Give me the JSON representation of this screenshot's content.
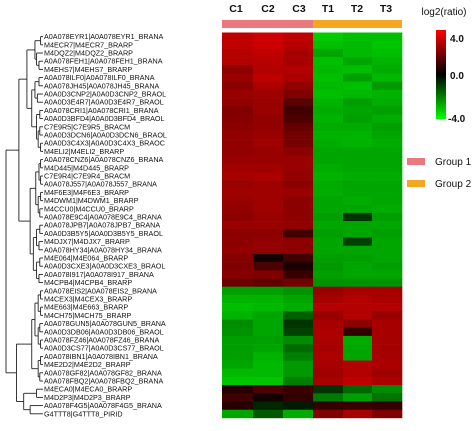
{
  "chart_data": {
    "type": "heatmap",
    "columns": [
      "C1",
      "C2",
      "C3",
      "T1",
      "T2",
      "T3"
    ],
    "column_groups": [
      "Group 1",
      "Group 1",
      "Group 1",
      "Group 2",
      "Group 2",
      "Group 2"
    ],
    "rows": [
      "A0A078EYR1|A0A078EYR1_BRANA",
      "M4ECR7|M4ECR7_BRARP",
      "M4DQZ2|M4DQZ2_BRARP",
      "A0A078FEH1|A0A078FEH1_BRANA",
      "M4EHS7|M4EHS7_BRARP",
      "A0A078ILF0|A0A078ILF0_BRANA",
      "A0A078JH45|A0A078JH45_BRANA",
      "A0A0D3CNP2|A0A0D3CNP2_BRAOL",
      "A0A0D3E4R7|A0A0D3E4R7_BRAOL",
      "A0A078CRI1|A0A078CRI1_BRANA",
      "A0A0D3BFD4|A0A0D3BFD4_BRAOL",
      "C7E9R5|C7E9R5_BRACM",
      "A0A0D3DCN6|A0A0D3DCN6_BRAOL",
      "A0A0D3C4X3|A0A0D3C4X3_BRAOC",
      "M4ELI2|M4ELI2_BRARP",
      "A0A078CNZ6|A0A078CNZ6_BRANA",
      "M4D445|M4D445_BRARP",
      "C7E9R4|C7E9R4_BRACM",
      "A0A078J557|A0A078J557_BRANA",
      "M4F6E3|M4F6E3_BRARP",
      "M4DWM1|M4DWM1_BRARP",
      "M4CCU0|M4CCU0_BRARP",
      "A0A078E9C4|A0A078E9C4_BRANA",
      "A0A078JPB7|A0A078JPB7_BRANA",
      "A0A0D3B5Y5|A0A0D3B5Y5_BRAOL",
      "M4DJX7|M4DJX7_BRARP",
      "A0A078HY34|A0A078HY34_BRANA",
      "M4E064|M4E064_BRARP",
      "A0A0D3CXE3|A0A0D3CXE3_BRAOL",
      "A0A078I917|A0A078I917_BRANA",
      "M4CPB4|M4CPB4_BRARP",
      "A0A078EIS2|A0A078EIS2_BRANA",
      "M4CEX3|M4CEX3_BRARP",
      "M4E663|M4E663_BRARP",
      "M4CH75|M4CH75_BRARP",
      "A0A078GUN5|A0A078GUN5_BRANA",
      "A0A0D3DB06|A0A0D3DB06_BRAOL",
      "A0A078FZ46|A0A078FZ46_BRANA",
      "A0A0D3CS77|A0A0D3CS77_BRAOL",
      "A0A078IBN1|A0A078IBN1_BRANA",
      "M4E2D2|M4E2D2_BRARP",
      "A0A078GF82|A0A078GF82_BRANA",
      "A0A078FBQ2|A0A078FBQ2_BRANA",
      "M4ECA0|M4ECA0_BRARP",
      "M4D2P3|M4D2P3_BRARP",
      "A0A078F4G5|A0A078F4G5_BRANA",
      "G4TTT8|G4TTT8_PIRID"
    ],
    "values": [
      [
        3.0,
        3.2,
        3.0,
        -3.2,
        -3.0,
        -3.0
      ],
      [
        3.0,
        3.2,
        2.9,
        -3.0,
        -2.9,
        -3.1
      ],
      [
        2.8,
        3.0,
        2.6,
        -2.6,
        -2.9,
        -3.0
      ],
      [
        2.8,
        2.9,
        2.6,
        -3.0,
        -2.6,
        -2.8
      ],
      [
        2.2,
        2.8,
        2.8,
        -2.9,
        -3.0,
        -2.7
      ],
      [
        2.4,
        3.0,
        2.7,
        -3.0,
        -2.5,
        -2.9
      ],
      [
        2.2,
        2.7,
        2.3,
        -2.9,
        -3.0,
        -2.4
      ],
      [
        2.4,
        2.5,
        2.0,
        -3.0,
        -2.9,
        -2.8
      ],
      [
        2.3,
        2.4,
        1.4,
        -2.8,
        -2.5,
        -2.7
      ],
      [
        2.0,
        2.4,
        1.0,
        -2.7,
        -2.6,
        -2.5
      ],
      [
        2.1,
        2.3,
        1.2,
        -2.8,
        -2.5,
        -2.7
      ],
      [
        2.2,
        2.3,
        1.6,
        -2.7,
        -2.7,
        -2.5
      ],
      [
        2.3,
        2.4,
        1.8,
        -2.8,
        -2.8,
        -2.6
      ],
      [
        2.3,
        2.5,
        1.9,
        -2.7,
        -2.8,
        -2.7
      ],
      [
        2.3,
        2.4,
        2.2,
        -2.6,
        -2.6,
        -2.6
      ],
      [
        2.4,
        2.4,
        2.4,
        -2.6,
        -2.6,
        -2.6
      ],
      [
        2.5,
        2.5,
        2.4,
        -2.7,
        -2.6,
        -2.6
      ],
      [
        2.6,
        2.7,
        2.3,
        -2.8,
        -2.7,
        -2.7
      ],
      [
        2.4,
        2.5,
        2.2,
        -2.7,
        -2.6,
        -2.6
      ],
      [
        2.5,
        2.5,
        2.4,
        -2.7,
        -2.6,
        -2.6
      ],
      [
        2.4,
        2.5,
        2.2,
        -2.6,
        -2.7,
        -2.6
      ],
      [
        2.3,
        2.5,
        2.2,
        -2.6,
        -2.6,
        -2.7
      ],
      [
        2.2,
        2.4,
        2.2,
        -2.5,
        -0.8,
        -2.5
      ],
      [
        2.4,
        2.4,
        2.3,
        -2.6,
        -2.6,
        -2.6
      ],
      [
        2.2,
        2.2,
        1.0,
        -2.5,
        -2.6,
        -2.5
      ],
      [
        2.2,
        2.3,
        2.2,
        -2.6,
        -1.0,
        -2.6
      ],
      [
        2.3,
        2.3,
        2.2,
        -2.6,
        -2.6,
        -2.6
      ],
      [
        2.1,
        0.3,
        1.0,
        -2.5,
        -2.5,
        -2.6
      ],
      [
        2.0,
        1.2,
        0.4,
        -2.4,
        -2.6,
        -2.5
      ],
      [
        2.1,
        2.0,
        0.9,
        -2.5,
        -2.6,
        -2.6
      ],
      [
        1.7,
        1.5,
        1.8,
        -2.3,
        -2.3,
        -2.3
      ],
      [
        -2.5,
        -2.5,
        -2.3,
        2.4,
        2.6,
        2.6
      ],
      [
        -2.8,
        -2.8,
        -2.6,
        2.6,
        2.8,
        2.7
      ],
      [
        -3.0,
        -2.9,
        -2.7,
        2.8,
        2.8,
        2.8
      ],
      [
        -2.8,
        -2.6,
        -1.5,
        2.4,
        2.8,
        2.4
      ],
      [
        -2.2,
        -2.6,
        -0.8,
        2.6,
        2.2,
        2.6
      ],
      [
        -2.3,
        -2.6,
        -1.0,
        2.7,
        0.8,
        2.6
      ],
      [
        -2.5,
        -2.5,
        -2.2,
        2.7,
        -2.7,
        2.6
      ],
      [
        -2.5,
        -2.6,
        -1.7,
        2.6,
        -2.6,
        2.6
      ],
      [
        -2.5,
        -2.8,
        -2.0,
        2.7,
        -2.6,
        2.6
      ],
      [
        -2.6,
        -2.9,
        -2.4,
        2.6,
        2.8,
        2.7
      ],
      [
        -2.9,
        -2.9,
        -2.4,
        2.5,
        2.8,
        2.5
      ],
      [
        -3.1,
        -3.1,
        -2.0,
        2.6,
        3.0,
        2.7
      ],
      [
        0.6,
        1.2,
        0.9,
        -0.8,
        -1.6,
        -2.2
      ],
      [
        1.0,
        0.3,
        0.8,
        -1.9,
        -2.5,
        -1.8
      ],
      [
        0.6,
        -0.6,
        -0.4,
        0.8,
        0.9,
        0.8
      ],
      [
        -2.6,
        -1.4,
        -2.7,
        2.0,
        2.6,
        2.0
      ]
    ],
    "dendrogram": {
      "merges": [
        [
          -1,
          -2,
          0.03
        ],
        [
          -4,
          -5,
          0.05
        ],
        [
          -3,
          2,
          0.08
        ],
        [
          1,
          3,
          0.1
        ],
        [
          -6,
          -7,
          0.05
        ],
        [
          -8,
          -9,
          0.07
        ],
        [
          5,
          6,
          0.1
        ],
        [
          -10,
          -11,
          0.04
        ],
        [
          -12,
          -13,
          0.04
        ],
        [
          -14,
          -15,
          0.03
        ],
        [
          9,
          10,
          0.06
        ],
        [
          8,
          11,
          0.08
        ],
        [
          7,
          12,
          0.14
        ],
        [
          4,
          13,
          0.2
        ],
        [
          -16,
          -17,
          0.03
        ],
        [
          -18,
          -19,
          0.03
        ],
        [
          15,
          16,
          0.05
        ],
        [
          -20,
          -21,
          0.03
        ],
        [
          -22,
          -23,
          0.04
        ],
        [
          18,
          19,
          0.06
        ],
        [
          17,
          20,
          0.09
        ],
        [
          -24,
          -25,
          0.04
        ],
        [
          -26,
          -27,
          0.05
        ],
        [
          22,
          23,
          0.08
        ],
        [
          -28,
          -29,
          0.04
        ],
        [
          -30,
          -31,
          0.05
        ],
        [
          25,
          26,
          0.08
        ],
        [
          24,
          27,
          0.12
        ],
        [
          21,
          28,
          0.16
        ],
        [
          14,
          29,
          0.3
        ],
        [
          -32,
          -33,
          0.03
        ],
        [
          -34,
          -35,
          0.03
        ],
        [
          31,
          32,
          0.06
        ],
        [
          -36,
          -37,
          0.04
        ],
        [
          -38,
          -39,
          0.03
        ],
        [
          34,
          35,
          0.06
        ],
        [
          33,
          36,
          0.1
        ],
        [
          -40,
          -41,
          0.03
        ],
        [
          -42,
          -43,
          0.04
        ],
        [
          38,
          39,
          0.06
        ],
        [
          37,
          40,
          0.14
        ],
        [
          -44,
          -45,
          0.08
        ],
        [
          -46,
          -47,
          0.16
        ],
        [
          42,
          43,
          0.24
        ],
        [
          41,
          44,
          0.33
        ],
        [
          30,
          45,
          0.46
        ]
      ],
      "height_max": 0.46
    },
    "color_scale": {
      "title": "log2(ratio)",
      "min": -4.0,
      "max": 4.0,
      "colors": [
        "#00ff00",
        "#000000",
        "#ff0000"
      ],
      "ticks": [
        "4.0",
        "0.0",
        "-4.0"
      ]
    },
    "group_legend": [
      {
        "label": "Group 1",
        "color": "#e87a7e"
      },
      {
        "label": "Group 2",
        "color": "#f5a623"
      }
    ]
  }
}
